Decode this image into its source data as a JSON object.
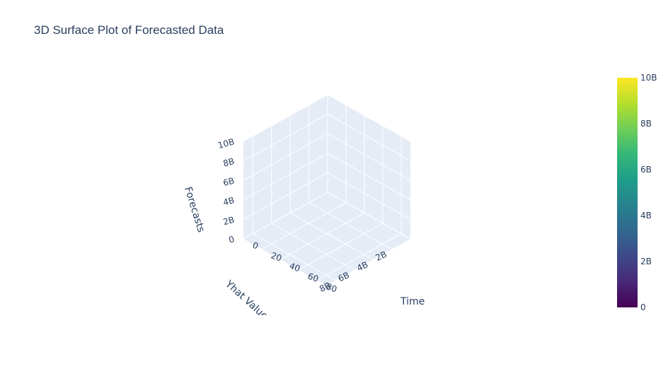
{
  "chart_data": {
    "type": "surface",
    "title": "3D Surface Plot of Forecasted Data",
    "x_axis": {
      "label": "Time",
      "ticks": [
        "0",
        "20",
        "40",
        "60",
        "80"
      ],
      "range": [
        0,
        90
      ]
    },
    "y_axis": {
      "label": "Yhat Values",
      "ticks": [
        "0",
        "2B",
        "4B",
        "6B",
        "8B"
      ],
      "range": [
        0,
        9000000000
      ]
    },
    "z_axis": {
      "label": "Forecasts",
      "ticks": [
        "0",
        "2B",
        "4B",
        "6B",
        "8B",
        "10B"
      ],
      "range": [
        0,
        10000000000
      ]
    },
    "colorbar": {
      "colorscale": "Viridis",
      "ticks": [
        "0",
        "2B",
        "4B",
        "6B",
        "8B",
        "10B"
      ],
      "range": [
        0,
        10000000000
      ],
      "colors": [
        "#440154",
        "#482878",
        "#3e4989",
        "#31688e",
        "#26828e",
        "#1f9e89",
        "#35b779",
        "#6ece58",
        "#b5de2b",
        "#fde725"
      ]
    },
    "grid": true,
    "scene_background": "#e5ecf6",
    "grid_color": "#ffffff"
  }
}
